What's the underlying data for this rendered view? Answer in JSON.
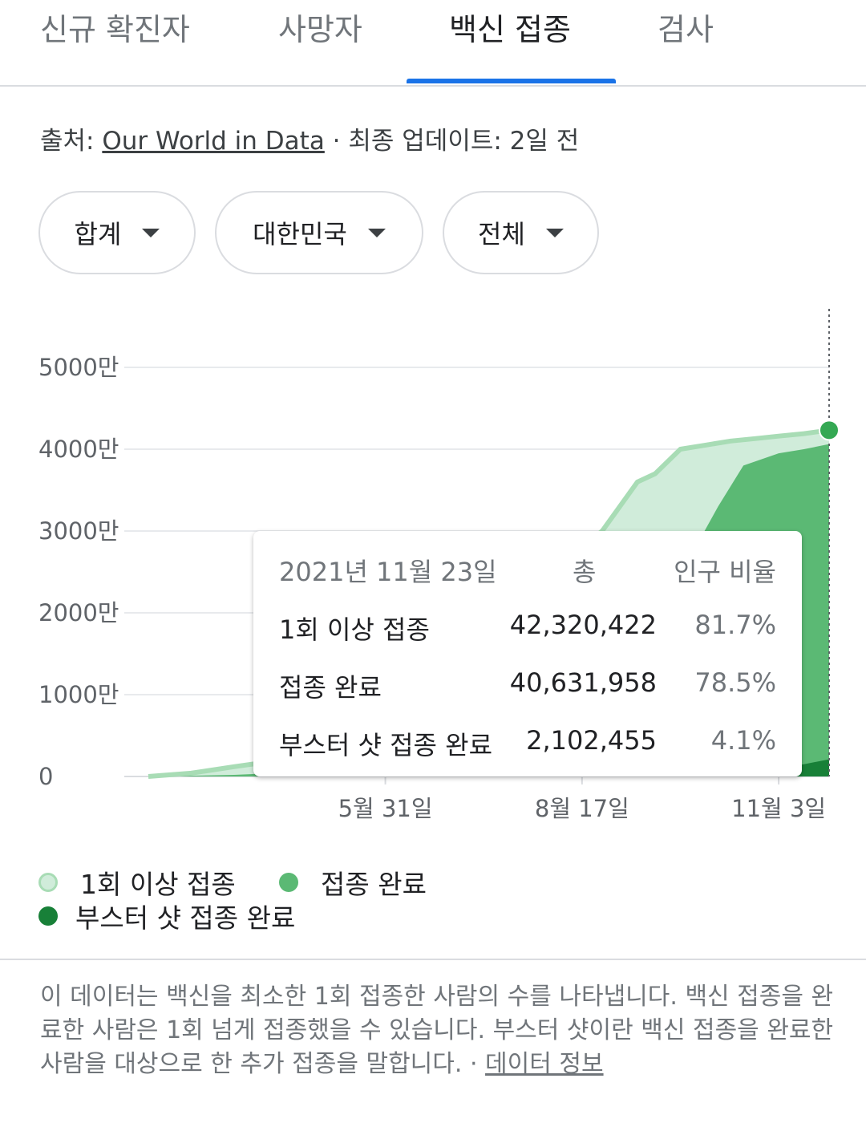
{
  "tabs": [
    {
      "label": "신규 확진자"
    },
    {
      "label": "사망자"
    },
    {
      "label": "백신 접종"
    },
    {
      "label": "검사"
    }
  ],
  "source": {
    "prefix": "출처: ",
    "link": "Our World in Data",
    "suffix": " · 최종 업데이트: 2일 전"
  },
  "filters": {
    "metric": "합계",
    "region": "대한민국",
    "scope": "전체"
  },
  "colors": {
    "accent": "#1a73e8",
    "at_least_one": "#d0ecda",
    "at_least_one_line": "#a8dcb5",
    "fully": "#5bb974",
    "booster": "#188038"
  },
  "chart_data": {
    "type": "area",
    "ylabels": [
      "5000만",
      "4000만",
      "3000만",
      "2000만",
      "1000만",
      "0"
    ],
    "yticks": [
      50000000,
      40000000,
      30000000,
      20000000,
      10000000,
      0
    ],
    "ylim": [
      0,
      50000000
    ],
    "xlabels": [
      "5월 31일",
      "8월 17일",
      "11월 3일"
    ],
    "xtick_dates": [
      "2021-05-31",
      "2021-08-17",
      "2021-11-03"
    ],
    "xlim": [
      "2021-02-26",
      "2021-11-23"
    ],
    "grid": true,
    "series": [
      {
        "name": "1회 이상 접종",
        "x": [
          "2021-02-26",
          "2021-03-15",
          "2021-04-01",
          "2021-04-15",
          "2021-05-01",
          "2021-05-15",
          "2021-05-31",
          "2021-06-10",
          "2021-06-20",
          "2021-07-01",
          "2021-07-15",
          "2021-07-25",
          "2021-08-01",
          "2021-08-10",
          "2021-08-17",
          "2021-08-25",
          "2021-09-01",
          "2021-09-08",
          "2021-09-15",
          "2021-09-25",
          "2021-10-05",
          "2021-10-15",
          "2021-10-25",
          "2021-11-03",
          "2021-11-13",
          "2021-11-23"
        ],
        "values": [
          0,
          400000,
          1200000,
          1800000,
          3000000,
          4500000,
          6500000,
          12000000,
          15000000,
          15600000,
          16500000,
          18000000,
          20000000,
          23000000,
          28000000,
          30000000,
          33000000,
          36000000,
          37000000,
          40000000,
          40500000,
          41000000,
          41300000,
          41600000,
          41900000,
          42320422
        ]
      },
      {
        "name": "접종 완료",
        "x": [
          "2021-02-26",
          "2021-04-01",
          "2021-05-01",
          "2021-05-31",
          "2021-06-20",
          "2021-07-15",
          "2021-08-01",
          "2021-08-17",
          "2021-08-25",
          "2021-09-01",
          "2021-09-10",
          "2021-09-20",
          "2021-10-01",
          "2021-10-10",
          "2021-10-20",
          "2021-11-03",
          "2021-11-13",
          "2021-11-23"
        ],
        "values": [
          0,
          200000,
          600000,
          2000000,
          4000000,
          6000000,
          7000000,
          10000000,
          12000000,
          15000000,
          19000000,
          23000000,
          28000000,
          33000000,
          38000000,
          39500000,
          40000000,
          40631958
        ]
      },
      {
        "name": "부스터 샷 접종 완료",
        "x": [
          "2021-02-26",
          "2021-09-30",
          "2021-10-15",
          "2021-10-25",
          "2021-11-03",
          "2021-11-13",
          "2021-11-23"
        ],
        "values": [
          0,
          0,
          200000,
          500000,
          1000000,
          1500000,
          2102455
        ]
      }
    ],
    "highlight_date": "2021-11-23"
  },
  "tooltip": {
    "date": "2021년 11월 23일",
    "total_header": "총",
    "ratio_header": "인구 비율",
    "rows": [
      {
        "label": "1회 이상 접종",
        "value": "42,320,422",
        "pct": "81.7%"
      },
      {
        "label": "접종 완료",
        "value": "40,631,958",
        "pct": "78.5%"
      },
      {
        "label": "부스터 샷 접종 완료",
        "value": "2,102,455",
        "pct": "4.1%"
      }
    ]
  },
  "legend": [
    {
      "label": "1회 이상 접종"
    },
    {
      "label": "접종 완료"
    },
    {
      "label": "부스터 샷 접종 완료"
    }
  ],
  "note": {
    "text": "이 데이터는 백신을 최소한 1회 접종한 사람의 수를 나타냅니다. 백신 접종을 완료한 사람은 1회 넘게 접종했을 수 있습니다. 부스터 샷이란 백신 접종을 완료한 사람을 대상으로 한 추가 접종을 말합니다.  · ",
    "link": "데이터 정보"
  }
}
